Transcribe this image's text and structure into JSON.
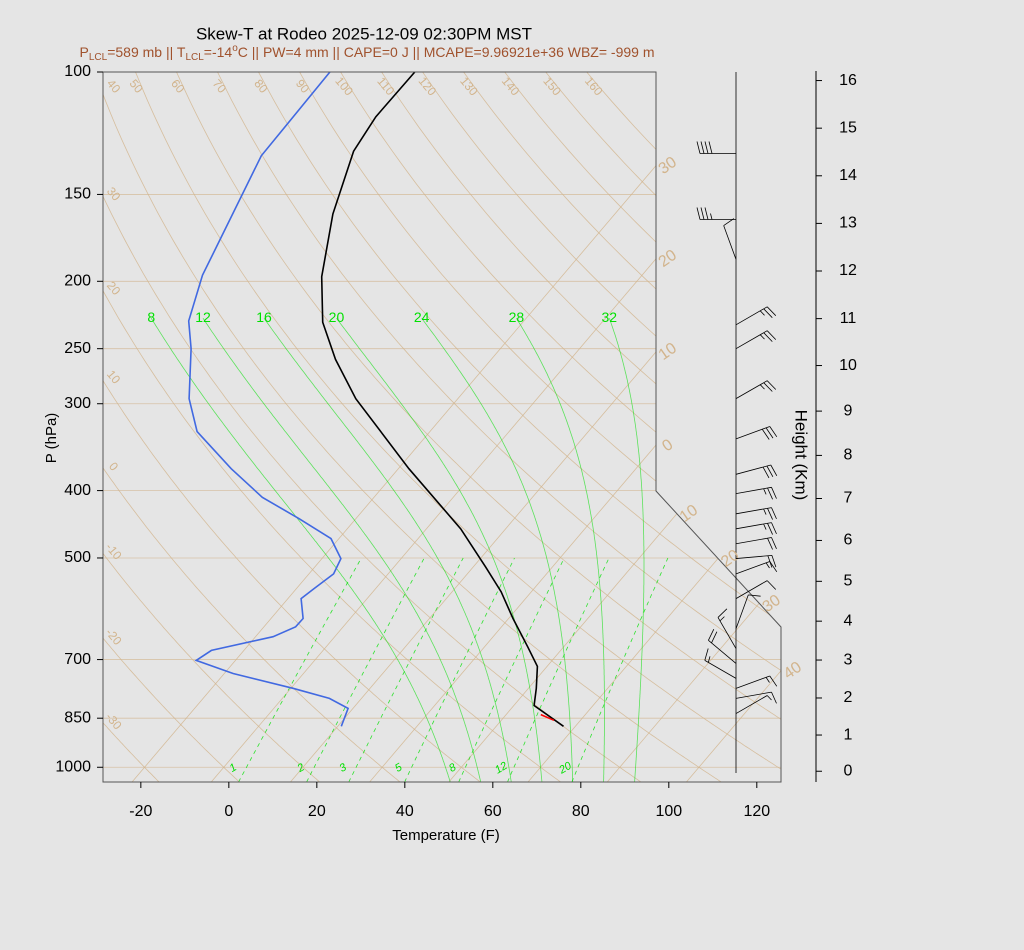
{
  "chart_data": {
    "type": "skewt",
    "title": "Skew-T at Rodeo 2025-12-09 02:30PM MST",
    "subtitle": [
      "P",
      "LCL",
      "=589 mb || T",
      "LCL",
      "=-14",
      "o",
      "C || PW=4 mm || CAPE=0 J || MCAPE=9.96921e+36 WBZ= -999 m"
    ],
    "xlabel": "Temperature (F)",
    "ylabel": "P (hPa)",
    "y2label": "Height (Km)",
    "xlim": [
      -28.6,
      125.5
    ],
    "xticks": [
      -20,
      0,
      20,
      40,
      60,
      80,
      100,
      120
    ],
    "ylim": [
      100,
      1050
    ],
    "yticks": [
      100,
      150,
      200,
      250,
      300,
      400,
      500,
      700,
      850,
      1000
    ],
    "log_scale": true,
    "grid": true,
    "y2lim": [
      -0.3,
      16.2
    ],
    "y2ticks": [
      0,
      1,
      2,
      3,
      4,
      5,
      6,
      7,
      8,
      9,
      10,
      11,
      12,
      13,
      14,
      15,
      16
    ],
    "series": [
      {
        "color": "#000000",
        "pressure": [
          873,
          815,
          770,
          716,
          671,
          611,
          559,
          515,
          454,
          372,
          295,
          259,
          229,
          197,
          160,
          130,
          116,
          100
        ],
        "temperature": [
          65.3,
          54.6,
          51.8,
          47.8,
          41.8,
          33.0,
          25.1,
          16.8,
          3.8,
          -19.6,
          -45.2,
          -57.4,
          -67.5,
          -76.5,
          -86.1,
          -93.5,
          -95.1,
          -94.9
        ]
      },
      {
        "color": "#4169e1",
        "pressure": [
          873,
          823,
          796,
          770,
          733,
          702,
          679,
          649,
          628,
          611,
          572,
          554,
          527,
          501,
          469,
          439,
          409,
          372,
          329,
          295,
          250,
          228,
          196,
          132,
          100
        ],
        "temperature": [
          14.8,
          12.9,
          6.7,
          -3.5,
          -20.0,
          -30.9,
          -29.4,
          -18.0,
          -14.8,
          -14.7,
          -19.0,
          -18.0,
          -16.4,
          -17.7,
          -23.8,
          -34.9,
          -47.4,
          -60.0,
          -74.9,
          -83.1,
          -92.3,
          -98.2,
          -103.9,
          -113.6,
          -114.2
        ]
      },
      {
        "color": "#ff0000",
        "pressure": [
          840,
          856
        ],
        "temperature": [
          57.9,
          62.0
        ]
      }
    ],
    "dry_adiabats": [
      -30,
      -20,
      -10,
      0,
      10,
      20,
      30,
      40,
      50,
      60,
      70,
      80,
      90,
      100,
      110,
      120,
      130,
      140,
      150,
      160
    ],
    "isotherms": [
      {
        "value": -30,
        "label": "30"
      },
      {
        "value": -20,
        "label": "20"
      },
      {
        "value": -10,
        "label": "10"
      },
      0,
      10,
      20,
      30,
      40
    ],
    "moist_adiabats": [
      8,
      12,
      16,
      20,
      24,
      28,
      32
    ],
    "mixing_ratios": [
      1,
      2,
      3,
      5,
      8,
      12,
      20
    ],
    "adiabat_color": "#d2b48c",
    "moist_color": "#00e000",
    "winds": [
      {
        "p": 131,
        "dir": 270,
        "spd": 40
      },
      {
        "p": 163,
        "dir": 270,
        "spd": 35
      },
      {
        "p": 186,
        "dir": 340,
        "spd": 10
      },
      {
        "p": 231,
        "dir": 60,
        "spd": 25
      },
      {
        "p": 250,
        "dir": 60,
        "spd": 25
      },
      {
        "p": 295,
        "dir": 60,
        "spd": 25
      },
      {
        "p": 337,
        "dir": 70,
        "spd": 30
      },
      {
        "p": 379,
        "dir": 75,
        "spd": 30
      },
      {
        "p": 404,
        "dir": 80,
        "spd": 25
      },
      {
        "p": 432,
        "dir": 80,
        "spd": 25
      },
      {
        "p": 454,
        "dir": 80,
        "spd": 25
      },
      {
        "p": 477,
        "dir": 80,
        "spd": 20
      },
      {
        "p": 501,
        "dir": 85,
        "spd": 20
      },
      {
        "p": 527,
        "dir": 70,
        "spd": 15
      },
      {
        "p": 572,
        "dir": 60,
        "spd": 10
      },
      {
        "p": 632,
        "dir": 20,
        "spd": 10
      },
      {
        "p": 675,
        "dir": 330,
        "spd": 15
      },
      {
        "p": 709,
        "dir": 310,
        "spd": 20
      },
      {
        "p": 745,
        "dir": 300,
        "spd": 15
      },
      {
        "p": 770,
        "dir": 70,
        "spd": 15
      },
      {
        "p": 796,
        "dir": 80,
        "spd": 10
      },
      {
        "p": 837,
        "dir": 60,
        "spd": 5
      }
    ]
  }
}
